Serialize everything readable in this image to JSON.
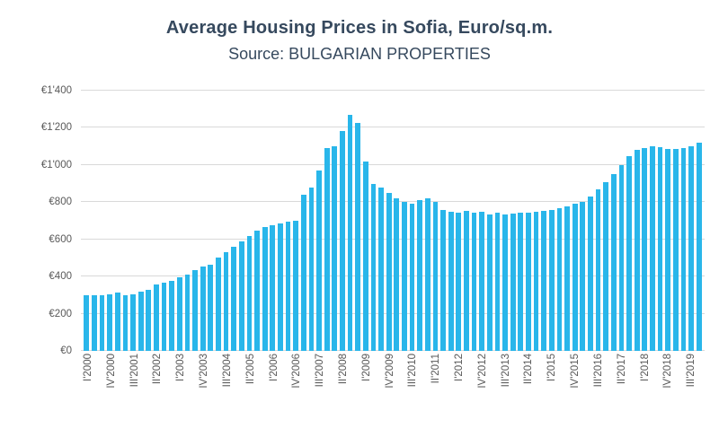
{
  "header": {
    "title": "Average Housing Prices in Sofia, Euro/sq.m.",
    "subtitle": "Source: BULGARIAN PROPERTIES"
  },
  "colors": {
    "bar": "#29b6ea",
    "title_text": "#36495e",
    "axis_text": "#595959",
    "gridline": "#d9d9d9"
  },
  "chart_data": {
    "type": "bar",
    "title": "Average Housing Prices in Sofia, Euro/sq.m.",
    "subtitle": "Source: BULGARIAN PROPERTIES",
    "currency": "EUR",
    "ylim": [
      0,
      1400
    ],
    "yticks": [
      0,
      200,
      400,
      600,
      800,
      1000,
      1200,
      1400
    ],
    "ytick_labels": [
      "€0",
      "€200",
      "€400",
      "€600",
      "€800",
      "€1'000",
      "€1'200",
      "€1'400"
    ],
    "grid": true,
    "legend": false,
    "x_label_every": 3,
    "categories": [
      "I'2000",
      "II'2000",
      "III'2000",
      "IV'2000",
      "I'2001",
      "II'2001",
      "III'2001",
      "IV'2001",
      "I'2002",
      "II'2002",
      "III'2002",
      "IV'2002",
      "I'2003",
      "II'2003",
      "III'2003",
      "IV'2003",
      "I'2004",
      "II'2004",
      "III'2004",
      "IV'2004",
      "I'2005",
      "II'2005",
      "III'2005",
      "IV'2005",
      "I'2006",
      "II'2006",
      "III'2006",
      "IV'2006",
      "I'2007",
      "II'2007",
      "III'2007",
      "IV'2007",
      "I'2008",
      "II'2008",
      "III'2008",
      "IV'2008",
      "I'2009",
      "II'2009",
      "III'2009",
      "IV'2009",
      "I'2010",
      "II'2010",
      "III'2010",
      "IV'2010",
      "I'2011",
      "II'2011",
      "III'2011",
      "IV'2011",
      "I'2012",
      "II'2012",
      "III'2012",
      "IV'2012",
      "I'2013",
      "II'2013",
      "III'2013",
      "IV'2013",
      "I'2014",
      "II'2014",
      "III'2014",
      "IV'2014",
      "I'2015",
      "II'2015",
      "III'2015",
      "IV'2015",
      "I'2016",
      "II'2016",
      "III'2016",
      "IV'2016",
      "I'2017",
      "II'2017",
      "III'2017",
      "IV'2017",
      "I'2018",
      "II'2018",
      "III'2018",
      "IV'2018",
      "I'2019",
      "II'2019",
      "III'2019",
      "IV'2019"
    ],
    "values": [
      300,
      297,
      300,
      305,
      312,
      300,
      305,
      318,
      330,
      358,
      368,
      375,
      395,
      412,
      435,
      452,
      465,
      500,
      532,
      560,
      590,
      618,
      648,
      665,
      678,
      688,
      695,
      700,
      840,
      880,
      970,
      1090,
      1100,
      1185,
      1270,
      1225,
      1020,
      900,
      880,
      850,
      820,
      800,
      790,
      810,
      820,
      800,
      760,
      750,
      745,
      752,
      745,
      750,
      735,
      742,
      732,
      740,
      745,
      742,
      748,
      752,
      760,
      770,
      778,
      790,
      800,
      832,
      870,
      910,
      950,
      1000,
      1050,
      1080,
      1092,
      1100,
      1095,
      1088,
      1085,
      1090,
      1100,
      1120
    ]
  }
}
